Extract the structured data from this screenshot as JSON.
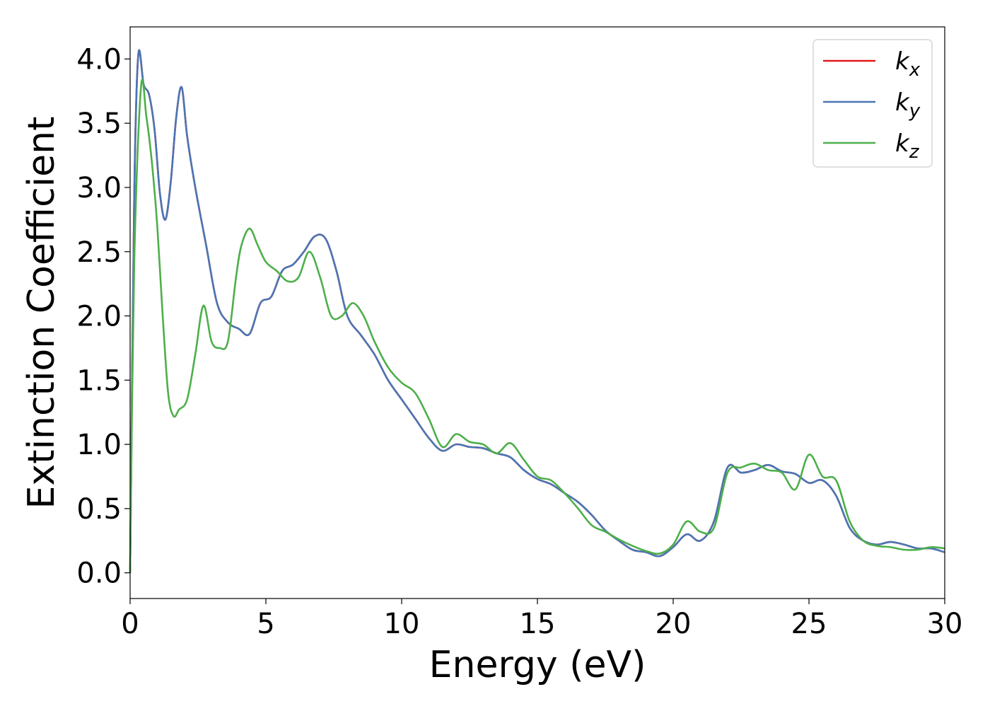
{
  "colors": {
    "kx": "#e41a1c",
    "ky": "#4a76b5",
    "kz": "#4daf4a",
    "axis": "#000000",
    "legend_border": "#cccccc"
  },
  "chart_data": {
    "type": "line",
    "xlabel": "Energy (eV)",
    "ylabel": "Extinction Coefficient",
    "xlim": [
      0,
      30
    ],
    "ylim": [
      -0.2,
      4.25
    ],
    "xticks": [
      0,
      5,
      10,
      15,
      20,
      25,
      30
    ],
    "xtick_labels": [
      "0",
      "5",
      "10",
      "15",
      "20",
      "25",
      "30"
    ],
    "yticks": [
      0.0,
      0.5,
      1.0,
      1.5,
      2.0,
      2.5,
      3.0,
      3.5,
      4.0
    ],
    "ytick_labels": [
      "0.0",
      "0.5",
      "1.0",
      "1.5",
      "2.0",
      "2.5",
      "3.0",
      "3.5",
      "4.0"
    ],
    "grid": false,
    "legend_position": "top-right",
    "series": [
      {
        "key": "kx",
        "name_base": "k",
        "name_sub": "x",
        "color": "#e41a1c",
        "x": [
          0,
          0.15,
          0.3,
          0.5,
          0.7,
          0.9,
          1.1,
          1.3,
          1.5,
          1.7,
          1.9,
          2.1,
          2.4,
          2.8,
          3.2,
          3.6,
          4.0,
          4.4,
          4.8,
          5.2,
          5.6,
          6.0,
          6.4,
          6.8,
          7.2,
          7.6,
          8.0,
          8.5,
          9.0,
          9.5,
          10.0,
          10.5,
          11.0,
          11.5,
          12.0,
          12.5,
          13.0,
          13.5,
          14.0,
          14.5,
          15.0,
          15.5,
          16.0,
          16.5,
          17.0,
          17.5,
          18.0,
          18.5,
          19.0,
          19.5,
          20.0,
          20.5,
          21.0,
          21.5,
          22.0,
          22.5,
          23.0,
          23.5,
          24.0,
          24.5,
          25.0,
          25.5,
          26.0,
          26.5,
          27.0,
          27.5,
          28.0,
          28.5,
          29.0,
          29.5,
          30.0
        ],
        "values": [
          0.0,
          2.9,
          4.03,
          3.8,
          3.72,
          3.45,
          2.95,
          2.75,
          3.05,
          3.55,
          3.78,
          3.4,
          3.0,
          2.55,
          2.1,
          1.95,
          1.9,
          1.86,
          2.1,
          2.15,
          2.35,
          2.4,
          2.5,
          2.62,
          2.6,
          2.35,
          2.0,
          1.85,
          1.7,
          1.5,
          1.35,
          1.2,
          1.05,
          0.95,
          1.0,
          0.98,
          0.97,
          0.93,
          0.9,
          0.8,
          0.73,
          0.69,
          0.62,
          0.55,
          0.45,
          0.33,
          0.25,
          0.18,
          0.16,
          0.13,
          0.2,
          0.3,
          0.25,
          0.4,
          0.82,
          0.78,
          0.8,
          0.84,
          0.79,
          0.77,
          0.7,
          0.72,
          0.6,
          0.35,
          0.25,
          0.22,
          0.24,
          0.22,
          0.19,
          0.19,
          0.16
        ]
      },
      {
        "key": "ky",
        "name_base": "k",
        "name_sub": "y",
        "color": "#4a76b5",
        "x": [
          0,
          0.15,
          0.3,
          0.5,
          0.7,
          0.9,
          1.1,
          1.3,
          1.5,
          1.7,
          1.9,
          2.1,
          2.4,
          2.8,
          3.2,
          3.6,
          4.0,
          4.4,
          4.8,
          5.2,
          5.6,
          6.0,
          6.4,
          6.8,
          7.2,
          7.6,
          8.0,
          8.5,
          9.0,
          9.5,
          10.0,
          10.5,
          11.0,
          11.5,
          12.0,
          12.5,
          13.0,
          13.5,
          14.0,
          14.5,
          15.0,
          15.5,
          16.0,
          16.5,
          17.0,
          17.5,
          18.0,
          18.5,
          19.0,
          19.5,
          20.0,
          20.5,
          21.0,
          21.5,
          22.0,
          22.5,
          23.0,
          23.5,
          24.0,
          24.5,
          25.0,
          25.5,
          26.0,
          26.5,
          27.0,
          27.5,
          28.0,
          28.5,
          29.0,
          29.5,
          30.0
        ],
        "values": [
          0.0,
          2.9,
          4.03,
          3.8,
          3.72,
          3.45,
          2.95,
          2.75,
          3.05,
          3.55,
          3.78,
          3.4,
          3.0,
          2.55,
          2.1,
          1.95,
          1.9,
          1.86,
          2.1,
          2.15,
          2.35,
          2.4,
          2.5,
          2.62,
          2.6,
          2.35,
          2.0,
          1.85,
          1.7,
          1.5,
          1.35,
          1.2,
          1.05,
          0.95,
          1.0,
          0.98,
          0.97,
          0.93,
          0.9,
          0.8,
          0.73,
          0.69,
          0.62,
          0.55,
          0.45,
          0.33,
          0.25,
          0.18,
          0.16,
          0.13,
          0.2,
          0.3,
          0.25,
          0.4,
          0.82,
          0.78,
          0.8,
          0.84,
          0.79,
          0.77,
          0.7,
          0.72,
          0.6,
          0.35,
          0.25,
          0.22,
          0.24,
          0.22,
          0.19,
          0.19,
          0.16
        ]
      },
      {
        "key": "kz",
        "name_base": "k",
        "name_sub": "z",
        "color": "#4daf4a",
        "x": [
          0,
          0.15,
          0.4,
          0.6,
          0.8,
          1.0,
          1.2,
          1.4,
          1.6,
          1.8,
          2.1,
          2.4,
          2.7,
          3.0,
          3.3,
          3.6,
          3.9,
          4.1,
          4.4,
          4.7,
          5.0,
          5.4,
          5.8,
          6.2,
          6.6,
          7.0,
          7.4,
          7.8,
          8.2,
          8.6,
          9.0,
          9.5,
          10.0,
          10.5,
          11.0,
          11.5,
          12.0,
          12.5,
          13.0,
          13.5,
          14.0,
          14.5,
          15.0,
          15.5,
          16.0,
          16.5,
          17.0,
          17.5,
          18.0,
          18.5,
          19.0,
          19.5,
          20.0,
          20.5,
          21.0,
          21.5,
          22.0,
          22.5,
          23.0,
          23.5,
          24.0,
          24.5,
          25.0,
          25.5,
          26.0,
          26.5,
          27.0,
          27.5,
          28.0,
          28.5,
          29.0,
          29.5,
          30.0
        ],
        "values": [
          0.0,
          2.4,
          3.78,
          3.55,
          3.2,
          2.7,
          2.0,
          1.4,
          1.22,
          1.27,
          1.35,
          1.7,
          2.08,
          1.8,
          1.75,
          1.8,
          2.3,
          2.55,
          2.68,
          2.55,
          2.42,
          2.35,
          2.27,
          2.3,
          2.5,
          2.3,
          2.0,
          2.0,
          2.1,
          2.0,
          1.8,
          1.6,
          1.48,
          1.4,
          1.2,
          0.98,
          1.08,
          1.02,
          1.0,
          0.93,
          1.01,
          0.88,
          0.75,
          0.72,
          0.62,
          0.5,
          0.37,
          0.32,
          0.26,
          0.21,
          0.17,
          0.15,
          0.22,
          0.4,
          0.32,
          0.35,
          0.78,
          0.82,
          0.85,
          0.8,
          0.78,
          0.65,
          0.92,
          0.75,
          0.72,
          0.4,
          0.25,
          0.21,
          0.2,
          0.18,
          0.18,
          0.2,
          0.19
        ]
      }
    ]
  }
}
